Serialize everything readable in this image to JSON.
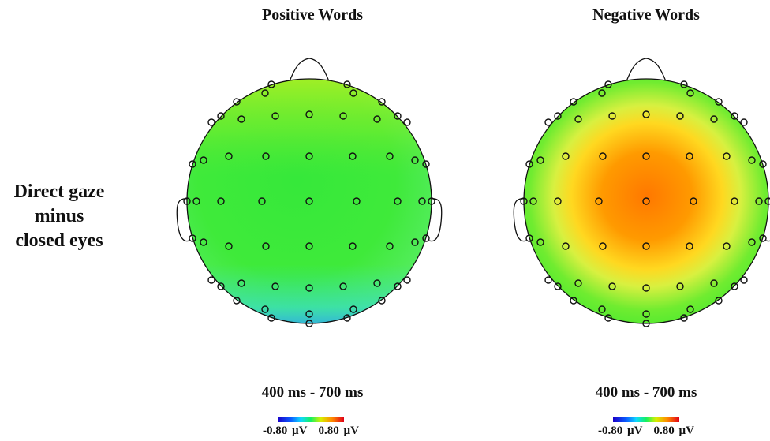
{
  "row_label": [
    "Direct gaze",
    "minus",
    "closed eyes"
  ],
  "panels": [
    {
      "title": "Positive Words",
      "time_window": "400 ms - 700 ms",
      "scale_min": "-0.80 µV",
      "scale_max": "0.80 µV",
      "dominant_color": "#3be83b"
    },
    {
      "title": "Negative Words",
      "time_window": "400 ms - 700 ms",
      "scale_min": "-0.80 µV",
      "scale_max": "0.80 µV",
      "dominant_color": "#ff8a00"
    }
  ],
  "colors": {
    "scale_low": "#1a00c8",
    "scale_mid": "#14f060",
    "scale_high": "#e00018"
  }
}
